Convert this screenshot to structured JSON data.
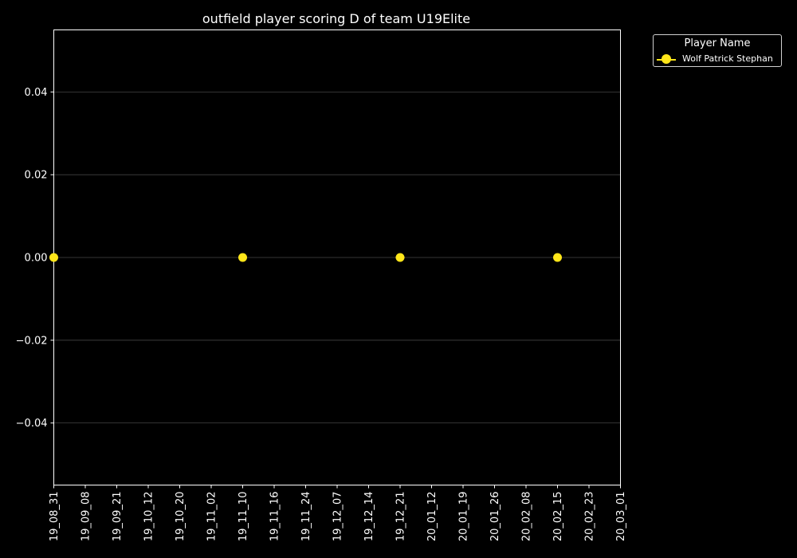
{
  "chart_data": {
    "type": "scatter",
    "title": "outfield player scoring D of team U19Elite",
    "xlabel": "",
    "ylabel": "",
    "categories": [
      "19_08_31",
      "19_09_08",
      "19_09_21",
      "19_10_12",
      "19_10_20",
      "19_11_02",
      "19_11_10",
      "19_11_16",
      "19_11_24",
      "19_12_07",
      "19_12_14",
      "19_12_21",
      "20_01_12",
      "20_01_19",
      "20_01_26",
      "20_02_08",
      "20_02_15",
      "20_02_23",
      "20_03_01"
    ],
    "series": [
      {
        "name": "Wolf Patrick Stephan",
        "color": "#ffe619",
        "points": [
          {
            "x": "19_08_31",
            "y": 0.0
          },
          {
            "x": "19_11_10",
            "y": 0.0
          },
          {
            "x": "19_12_21",
            "y": 0.0
          },
          {
            "x": "20_02_15",
            "y": 0.0
          }
        ]
      }
    ],
    "ylim": [
      -0.055,
      0.055
    ],
    "yticks": [
      -0.04,
      -0.02,
      0.0,
      0.02,
      0.04
    ],
    "ytick_labels": [
      "−0.04",
      "−0.02",
      "0.00",
      "0.02",
      "0.04"
    ],
    "grid": "y-dotted",
    "legend_title": "Player Name",
    "legend_position": "outside-top-right",
    "colors": {
      "background": "#000000",
      "axes": "#ffffff",
      "grid": "#888888"
    }
  }
}
